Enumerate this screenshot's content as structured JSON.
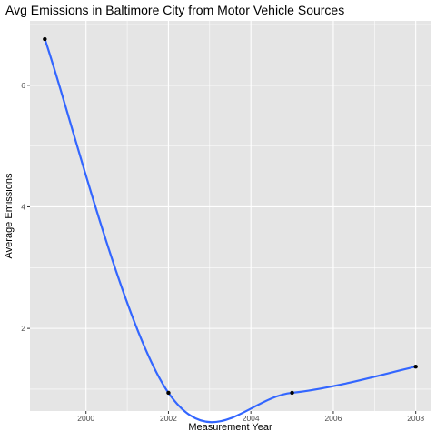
{
  "chart_data": {
    "type": "line",
    "title": "Avg Emissions in Baltimore City from Motor Vehicle Sources",
    "xlabel": "Measurement Year",
    "ylabel": "Average Emissions",
    "xlim": [
      1998.64,
      2008.36
    ],
    "ylim": [
      0.64,
      7.06
    ],
    "x_ticks": [
      2000,
      2002,
      2004,
      2006,
      2008
    ],
    "y_ticks": [
      2,
      4,
      6
    ],
    "grid": true,
    "legend": "none",
    "series": [
      {
        "points": [
          {
            "x": 1999,
            "y": 6.76
          },
          {
            "x": 2002,
            "y": 0.94
          },
          {
            "x": 2005,
            "y": 0.94
          },
          {
            "x": 2008,
            "y": 1.37
          }
        ],
        "smooth_line": true
      }
    ],
    "colors": {
      "panel": "#e5e5e5",
      "grid": "#ffffff",
      "line": "#3366ff",
      "point": "#000000"
    }
  }
}
